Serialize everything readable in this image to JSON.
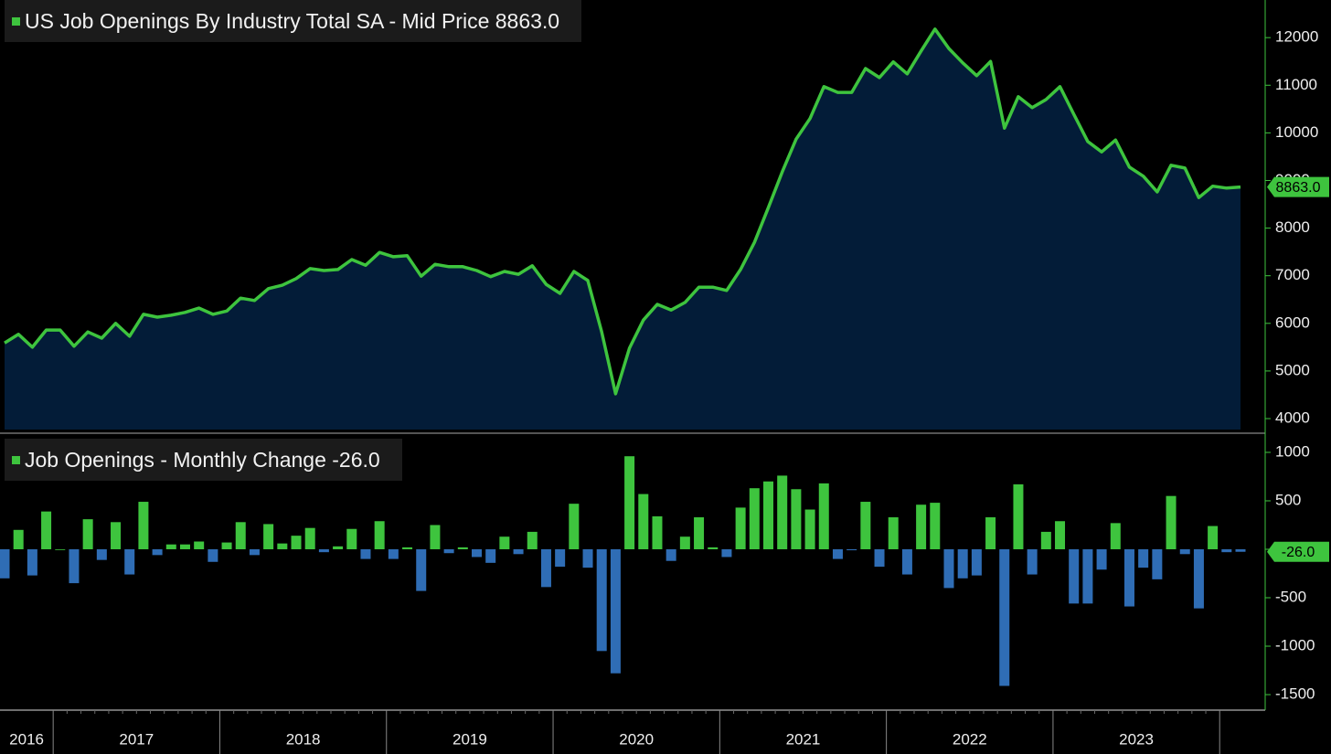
{
  "chart_data": [
    {
      "type": "area",
      "title": "US Job Openings By Industry Total SA - Mid Price",
      "last_label": "8863.0",
      "color": "#3ec43e",
      "fill": "#031c38",
      "values": [
        5590,
        5770,
        5500,
        5860,
        5860,
        5520,
        5820,
        5690,
        6000,
        5730,
        6190,
        6130,
        6170,
        6230,
        6320,
        6190,
        6260,
        6530,
        6480,
        6730,
        6800,
        6940,
        7150,
        7110,
        7130,
        7340,
        7220,
        7490,
        7400,
        7420,
        6990,
        7240,
        7190,
        7190,
        7110,
        6980,
        7090,
        7030,
        7210,
        6820,
        6630,
        7090,
        6900,
        5820,
        4520,
        5480,
        6070,
        6400,
        6280,
        6440,
        6760,
        6760,
        6690,
        7130,
        7700,
        8430,
        9180,
        9870,
        10300,
        10970,
        10850,
        10850,
        11350,
        11160,
        11490,
        11240,
        11720,
        12180,
        11770,
        11470,
        11200,
        11500,
        10100,
        10760,
        10530,
        10700,
        10970,
        10390,
        9820,
        9600,
        9850,
        9280,
        9090,
        8760,
        9320,
        9260,
        8640,
        8880,
        8840,
        8863
      ],
      "ylim": [
        3770,
        12790
      ],
      "yticks": [
        4000,
        5000,
        6000,
        7000,
        8000,
        9000,
        10000,
        11000,
        12000
      ]
    },
    {
      "type": "bar",
      "title": "Job Openings - Monthly Change",
      "last_label": "-26.0",
      "positive_color": "#3ec43e",
      "negative_color": "#2f6db5",
      "values": [
        -300,
        200,
        -270,
        390,
        0,
        -350,
        310,
        -110,
        280,
        -260,
        490,
        -60,
        50,
        50,
        80,
        -130,
        70,
        280,
        -60,
        260,
        60,
        140,
        220,
        -30,
        30,
        210,
        -100,
        290,
        -100,
        20,
        -430,
        250,
        -40,
        20,
        -80,
        -140,
        130,
        -50,
        180,
        -390,
        -180,
        470,
        -190,
        -1050,
        -1280,
        960,
        570,
        340,
        -120,
        130,
        330,
        20,
        -80,
        430,
        630,
        700,
        760,
        620,
        410,
        680,
        -100,
        -10,
        490,
        -180,
        330,
        -260,
        460,
        480,
        -400,
        -300,
        -270,
        330,
        -1410,
        670,
        -260,
        180,
        290,
        -560,
        -560,
        -210,
        270,
        -590,
        -190,
        -310,
        550,
        -50,
        -610,
        240,
        -30,
        -26
      ],
      "ylim": [
        -1660,
        1160
      ],
      "yticks": [
        -1500,
        -1000,
        -500,
        0,
        500,
        1000
      ],
      "year_labels": [
        "2016",
        "2017",
        "2018",
        "2019",
        "2020",
        "2021",
        "2022",
        "2023"
      ]
    }
  ]
}
